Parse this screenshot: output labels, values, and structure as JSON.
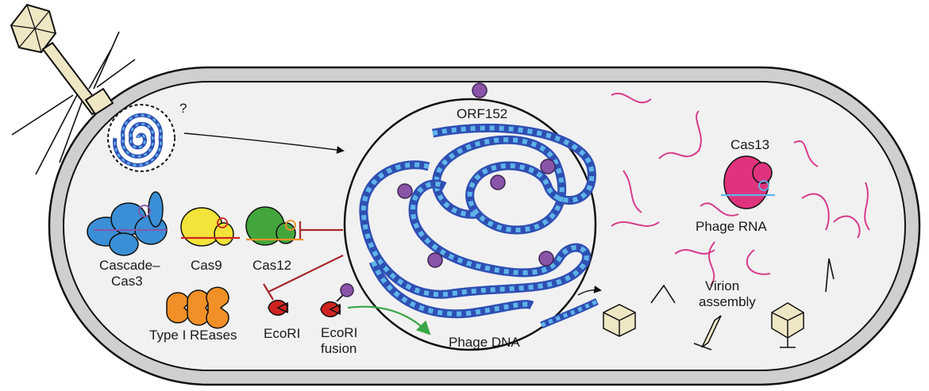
{
  "labels": {
    "unknown_mark": "?",
    "orf152": "ORF152",
    "phage_dna": "Phage DNA",
    "cas13": "Cas13",
    "phage_rna": "Phage RNA",
    "virion_line1": "Virion",
    "virion_line2": "assembly",
    "cascade_line1": "Cascade–",
    "cascade_line2": "Cas3",
    "cas9": "Cas9",
    "cas12": "Cas12",
    "type1_reases": "Type I REases",
    "ecori": "EcoRI",
    "ecori_fusion_line1": "EcoRI",
    "ecori_fusion_line2": "fusion"
  },
  "colors": {
    "cell_wall": "#cfcfcf",
    "cytoplasm": "#f1f1f1",
    "dna_dark": "#2f4fb3",
    "dna_light": "#5fb4ea",
    "orf152_protein": "#8a55a8",
    "rna": "#d63c8c",
    "cas13": "#e0337d",
    "cascade": "#3a8fd6",
    "cas9": "#f3e33a",
    "cas12": "#43a63c",
    "type1_reases": "#f19026",
    "ecori": "#cf2420",
    "inhibition": "#a8282c",
    "transport_arrow": "#3aa646",
    "phage_capsid": "#efe6c4"
  }
}
